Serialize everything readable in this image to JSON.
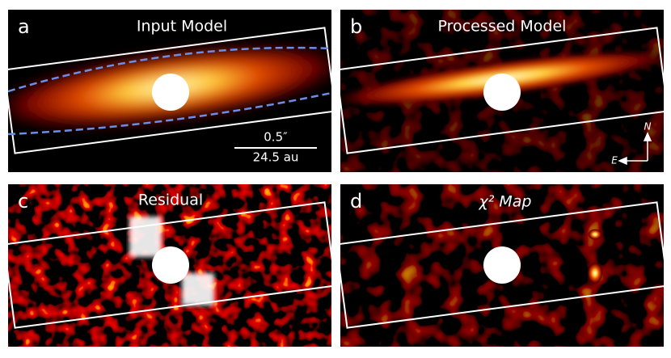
{
  "panels": [
    {
      "label": "a",
      "title": "Input Model"
    },
    {
      "label": "b",
      "title": "Processed Model"
    },
    {
      "label": "c",
      "title": "Residual"
    },
    {
      "label": "d",
      "title": "χ² Map"
    }
  ],
  "scale_bar": {
    "angle": "0.5″",
    "distance": "24.5 au"
  },
  "compass": {
    "north": "N",
    "east": "E"
  }
}
